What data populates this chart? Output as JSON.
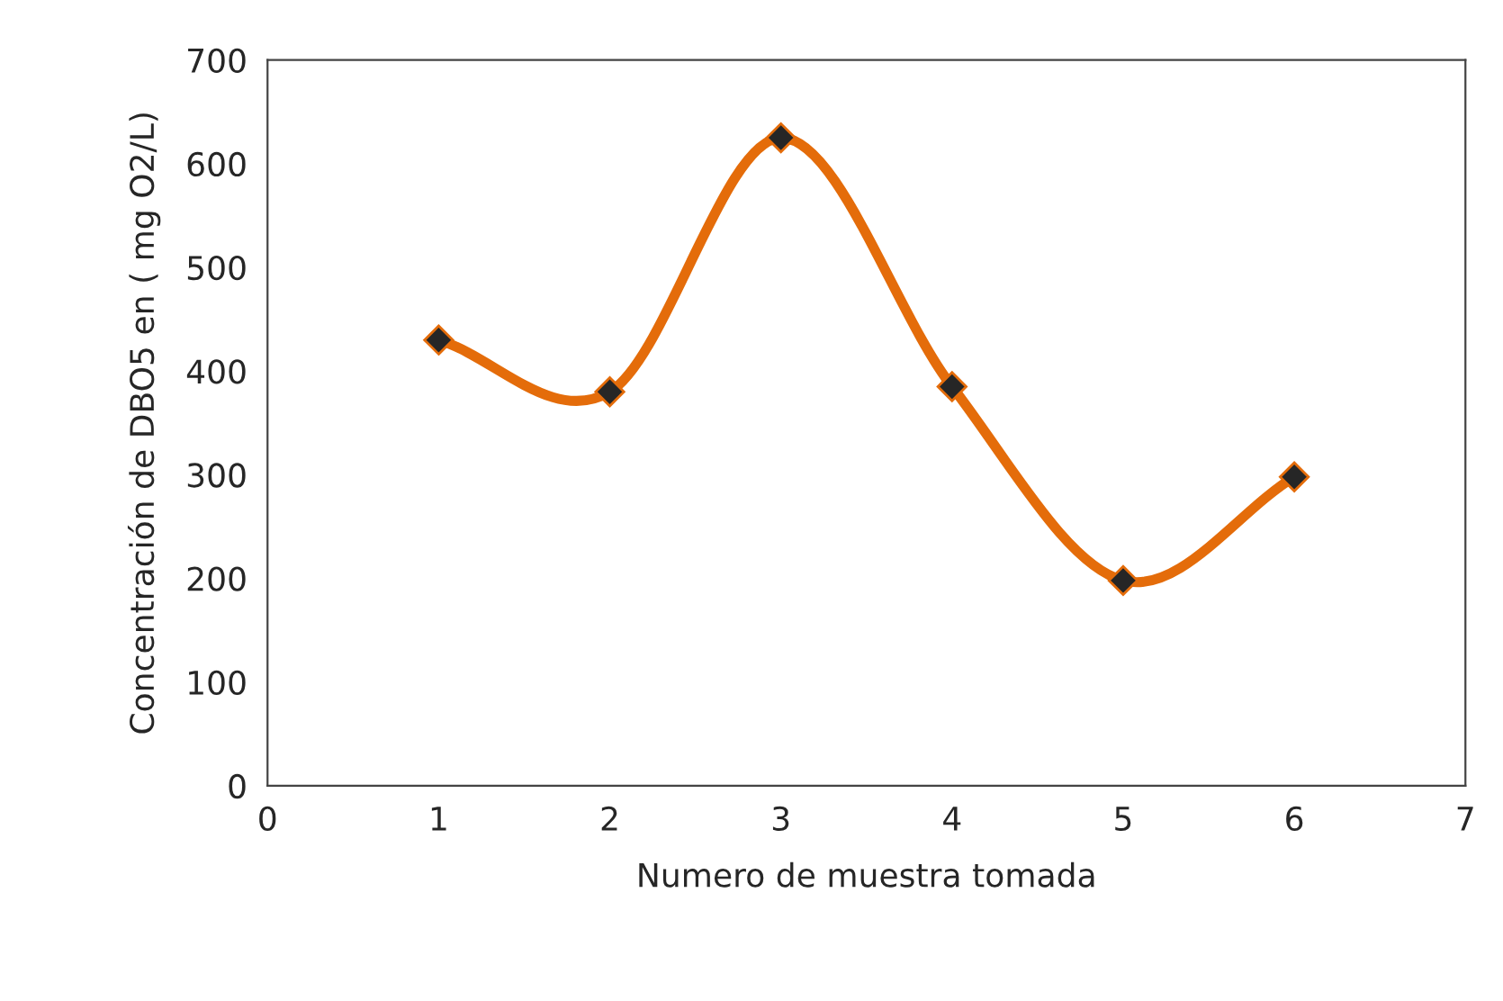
{
  "chart_data": {
    "type": "line",
    "xlabel": "Numero de muestra tomada",
    "ylabel": "Concentración de DBO5 en ( mg O2/L)",
    "x": [
      1,
      2,
      3,
      4,
      5,
      6
    ],
    "series": [
      {
        "color": "#e46c0a",
        "values": [
          430,
          380,
          625,
          385,
          198,
          298
        ]
      }
    ],
    "marker": "diamond",
    "line_style": "solid",
    "xlim": [
      0,
      7
    ],
    "xticks": [
      0,
      1,
      2,
      3,
      4,
      5,
      6,
      7
    ],
    "ylim": [
      0,
      700
    ],
    "yticks": [
      0,
      100,
      200,
      300,
      400,
      500,
      600,
      700
    ],
    "grid": false,
    "legend": false
  }
}
